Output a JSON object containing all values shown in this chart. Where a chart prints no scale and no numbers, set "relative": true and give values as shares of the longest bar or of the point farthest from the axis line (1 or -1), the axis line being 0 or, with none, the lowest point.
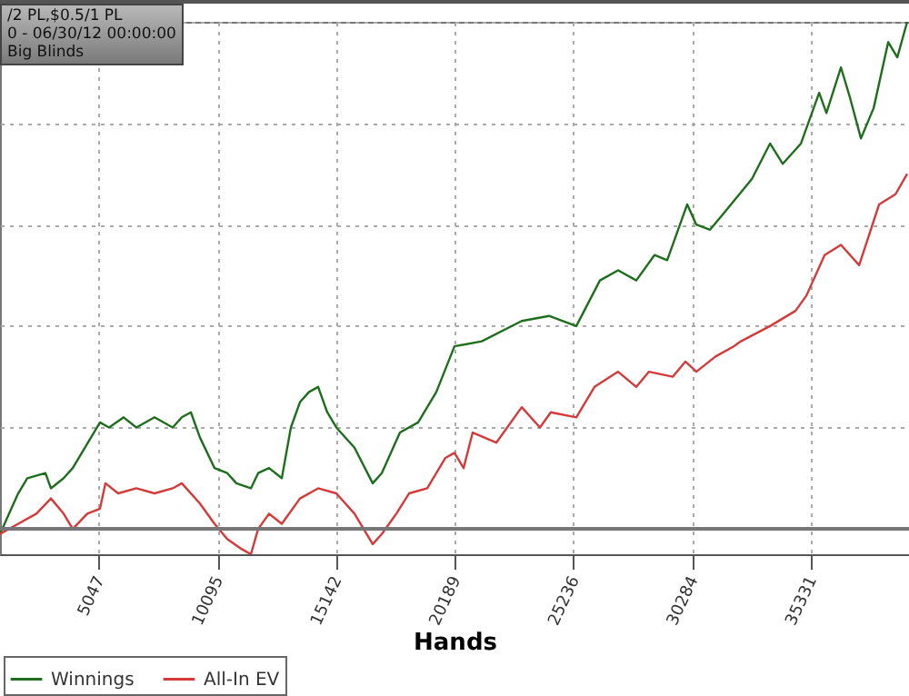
{
  "chart_data": {
    "type": "line",
    "relative": true,
    "xlabel": "Hands",
    "xlim": [
      850,
      39500
    ],
    "xticks": [
      5047,
      10095,
      15142,
      20189,
      25236,
      30284,
      35331
    ],
    "grid": true,
    "legend": "bottom left",
    "marker": "none",
    "line_style": "solid",
    "annotations": [
      "/2 PL,$0.5/1 PL",
      "0 - 06/30/12 00:00:00",
      "Big Blinds"
    ],
    "series": [
      {
        "name": "Winnings",
        "color": "#1e6e1e",
        "x": [
          850,
          1237,
          1623,
          2010,
          2783,
          3015,
          3556,
          3942,
          4329,
          5102,
          5488,
          6107,
          6648,
          7421,
          8194,
          8580,
          8967,
          9353,
          9972,
          10513,
          10899,
          11518,
          11827,
          12291,
          12832,
          13218,
          13605,
          13991,
          14378,
          14764,
          15151,
          15924,
          16697,
          17083,
          17856,
          18629,
          19402,
          20175,
          21334,
          23034,
          24193,
          25354,
          26359,
          27132,
          27905,
          28678,
          29219,
          30070,
          30456,
          31041,
          31582,
          32819,
          33592,
          34133,
          34906,
          35448,
          35680,
          35989,
          36607,
          36993,
          37457,
          37998,
          38617,
          39003,
          39423
        ],
        "values": [
          -0.01,
          0.03,
          0.07,
          0.1,
          0.11,
          0.08,
          0.1,
          0.12,
          0.15,
          0.21,
          0.2,
          0.22,
          0.2,
          0.22,
          0.2,
          0.22,
          0.23,
          0.18,
          0.12,
          0.11,
          0.09,
          0.08,
          0.11,
          0.12,
          0.1,
          0.2,
          0.25,
          0.27,
          0.28,
          0.23,
          0.2,
          0.16,
          0.09,
          0.11,
          0.19,
          0.21,
          0.27,
          0.36,
          0.37,
          0.41,
          0.42,
          0.4,
          0.49,
          0.51,
          0.49,
          0.54,
          0.53,
          0.64,
          0.6,
          0.59,
          0.62,
          0.69,
          0.76,
          0.72,
          0.76,
          0.83,
          0.86,
          0.82,
          0.91,
          0.85,
          0.77,
          0.83,
          0.96,
          0.93,
          1
        ]
      },
      {
        "name": "All-In EV",
        "color": "#d43a3a",
        "x": [
          850,
          1623,
          2396,
          3015,
          3556,
          3942,
          4561,
          5102,
          5334,
          5875,
          6648,
          7421,
          8194,
          8580,
          9353,
          9972,
          10513,
          11131,
          11518,
          11827,
          12291,
          12832,
          13605,
          14378,
          15151,
          15924,
          16697,
          17083,
          17702,
          18242,
          19015,
          19788,
          20175,
          20561,
          20948,
          21952,
          23034,
          23807,
          24270,
          25354,
          26127,
          27132,
          27905,
          28446,
          29451,
          29992,
          30456,
          31273,
          32046,
          32355,
          33592,
          34674,
          35138,
          35912,
          36607,
          37380,
          38230,
          38926,
          39423
        ],
        "values": [
          -0.01,
          0.01,
          0.03,
          0.06,
          0.03,
          0.0,
          0.03,
          0.04,
          0.09,
          0.07,
          0.08,
          0.07,
          0.08,
          0.09,
          0.05,
          0.01,
          -0.02,
          -0.04,
          -0.05,
          0.0,
          0.03,
          0.01,
          0.06,
          0.08,
          0.07,
          0.03,
          -0.03,
          -0.01,
          0.03,
          0.07,
          0.08,
          0.14,
          0.15,
          0.12,
          0.19,
          0.17,
          0.24,
          0.2,
          0.23,
          0.22,
          0.28,
          0.31,
          0.28,
          0.31,
          0.3,
          0.33,
          0.31,
          0.34,
          0.36,
          0.37,
          0.4,
          0.43,
          0.46,
          0.54,
          0.56,
          0.52,
          0.64,
          0.66,
          0.7
        ]
      }
    ]
  }
}
